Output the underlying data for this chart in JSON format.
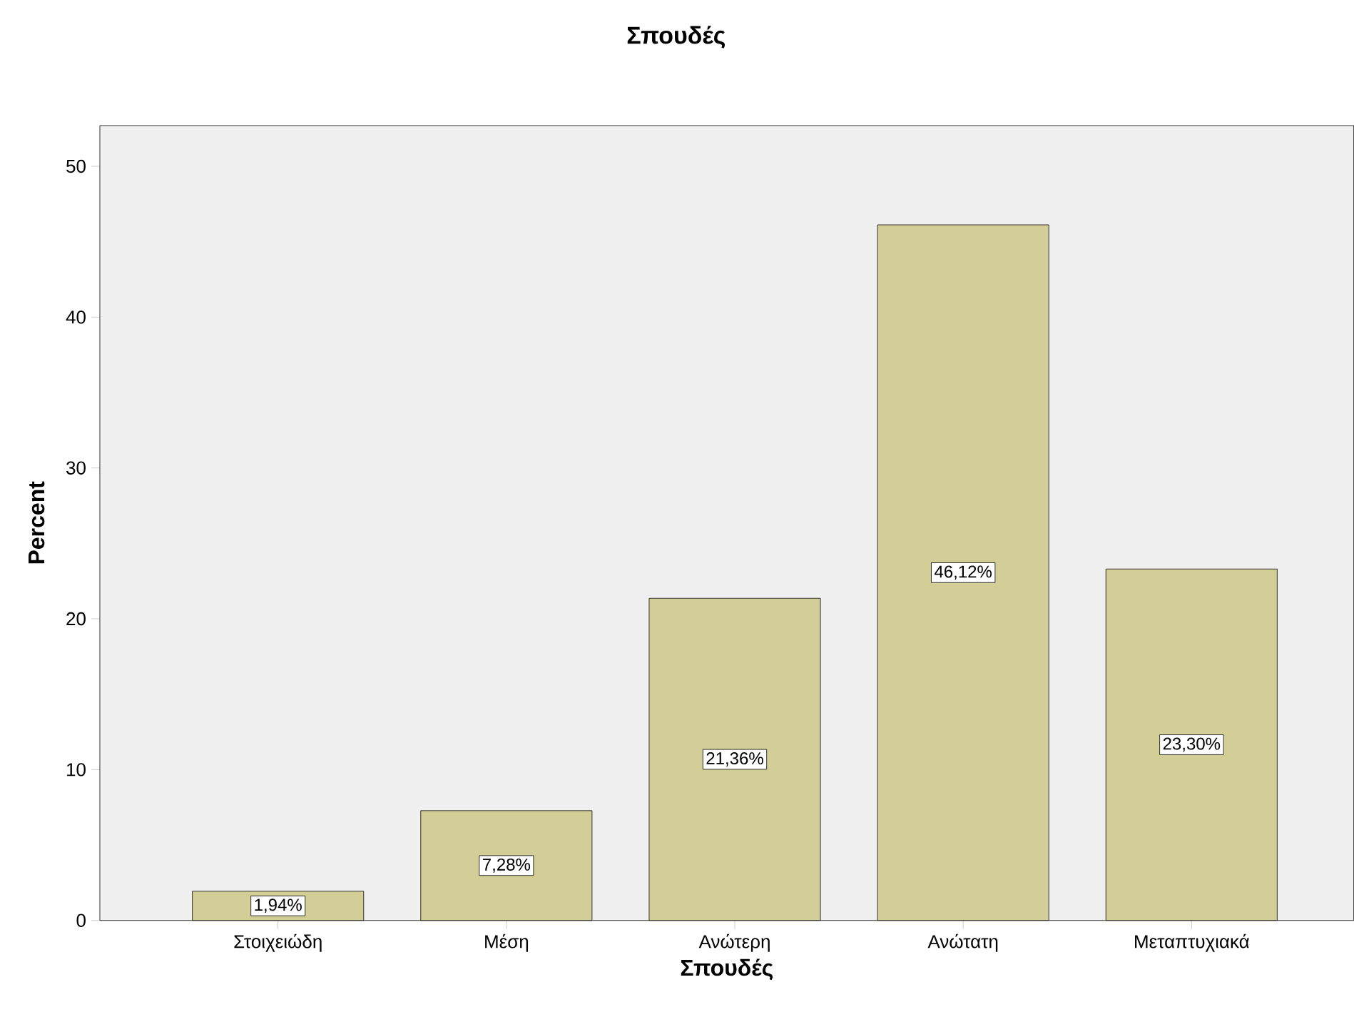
{
  "chart_data": {
    "type": "bar",
    "title": "Σπουδές",
    "xlabel": "Σπουδές",
    "ylabel": "Percent",
    "categories": [
      "Στοιχειώδη",
      "Μέση",
      "Ανώτερη",
      "Ανώτατη",
      "Μεταπτυχιακά"
    ],
    "values": [
      1.94,
      7.28,
      21.36,
      46.12,
      23.3
    ],
    "value_labels": [
      "1,94%",
      "7,28%",
      "21,36%",
      "46,12%",
      "23,30%"
    ],
    "color": "#d3ce97",
    "ylim": [
      0,
      52.7
    ],
    "yticks": [
      0,
      10,
      20,
      30,
      40,
      50
    ]
  }
}
